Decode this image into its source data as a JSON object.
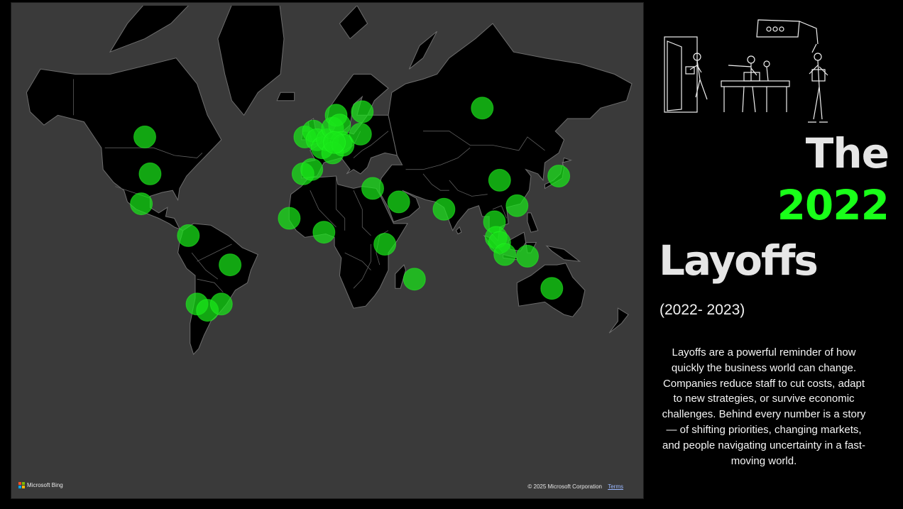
{
  "map": {
    "provider_label": "Microsoft Bing",
    "copyright": "© 2025 Microsoft Corporation",
    "terms_label": "Terms",
    "colors": {
      "land": "#000000",
      "water": "#3a3a3a",
      "borders": "#6d6d6d",
      "bubble": "#19e619"
    },
    "layoff_locations": [
      {
        "lon": -100,
        "lat": 53
      },
      {
        "lon": -97,
        "lat": 38
      },
      {
        "lon": -102,
        "lat": 23
      },
      {
        "lon": -75,
        "lat": 5
      },
      {
        "lon": -51,
        "lat": -12
      },
      {
        "lon": -70,
        "lat": -33
      },
      {
        "lon": -64,
        "lat": -36
      },
      {
        "lon": -56,
        "lat": -33
      },
      {
        "lon": -17,
        "lat": 15
      },
      {
        "lon": 3,
        "lat": 7
      },
      {
        "lon": -9,
        "lat": 38
      },
      {
        "lon": -4,
        "lat": 40
      },
      {
        "lon": -8,
        "lat": 53
      },
      {
        "lon": -3,
        "lat": 55
      },
      {
        "lon": -1,
        "lat": 52
      },
      {
        "lon": 2,
        "lat": 49
      },
      {
        "lon": 5,
        "lat": 52
      },
      {
        "lon": 8,
        "lat": 56
      },
      {
        "lon": 10,
        "lat": 60
      },
      {
        "lon": 12,
        "lat": 57
      },
      {
        "lon": 13,
        "lat": 51
      },
      {
        "lon": 8,
        "lat": 47
      },
      {
        "lon": 14,
        "lat": 50
      },
      {
        "lon": 9,
        "lat": 51
      },
      {
        "lon": 25,
        "lat": 61
      },
      {
        "lon": 24,
        "lat": 54
      },
      {
        "lon": 31,
        "lat": 31
      },
      {
        "lon": 38,
        "lat": 0
      },
      {
        "lon": 46,
        "lat": 24
      },
      {
        "lon": 55,
        "lat": -20
      },
      {
        "lon": 72,
        "lat": 20
      },
      {
        "lon": 94,
        "lat": 62
      },
      {
        "lon": 104,
        "lat": 35
      },
      {
        "lon": 138,
        "lat": 37
      },
      {
        "lon": 114,
        "lat": 22
      },
      {
        "lon": 101,
        "lat": 13
      },
      {
        "lon": 102,
        "lat": 4
      },
      {
        "lon": 104,
        "lat": 1
      },
      {
        "lon": 107,
        "lat": -6
      },
      {
        "lon": 120,
        "lat": -7
      },
      {
        "lon": 134,
        "lat": -25
      }
    ]
  },
  "panel": {
    "title_the": "The",
    "title_year": "2022",
    "title_layoffs": "Layoffs",
    "period": "(2022- 2023)",
    "description": "Layoffs are a powerful reminder of how quickly the business world can change. Companies reduce staff to cut costs, adapt to new strategies, or survive economic challenges. Behind every number is a story — of shifting priorities, changing markets, and people navigating uncertainty in a fast-moving world."
  },
  "icons": [
    "microsoft-logo-icon",
    "office-layoff-illustration"
  ]
}
